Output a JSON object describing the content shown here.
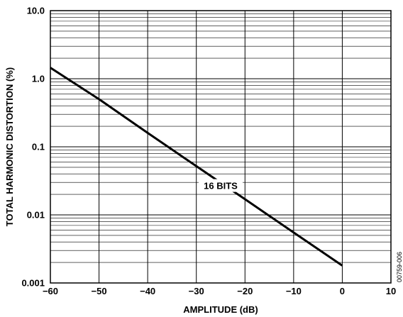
{
  "chart_data": {
    "type": "line",
    "title": "",
    "xlabel": "AMPLITUDE (dB)",
    "ylabel": "TOTAL HARMONIC DISTORTION (%)",
    "x_scale": "linear",
    "y_scale": "log",
    "xlim": [
      -60,
      10
    ],
    "ylim": [
      0.001,
      10.0
    ],
    "x_ticks": [
      -60,
      -50,
      -40,
      -30,
      -20,
      -10,
      0,
      10
    ],
    "x_tick_labels": [
      "−60",
      "−50",
      "−40",
      "−30",
      "−20",
      "−10",
      "0",
      "10"
    ],
    "y_ticks": [
      0.001,
      0.01,
      0.1,
      1.0,
      10.0
    ],
    "y_tick_labels": [
      "0.001",
      "0.01",
      "0.1",
      "1.0",
      "10.0"
    ],
    "grid": true,
    "series": [
      {
        "name": "16 BITS",
        "x": [
          -60,
          -50,
          -40,
          -30,
          -20,
          -10,
          0
        ],
        "y": [
          1.45,
          0.5,
          0.16,
          0.052,
          0.017,
          0.0055,
          0.0018
        ]
      }
    ],
    "annotations": [
      {
        "text": "16 BITS",
        "x": -25,
        "y": 0.027
      }
    ]
  },
  "figure_id": "00759-006",
  "colors": {
    "line": "#000000",
    "grid": "#000000",
    "background": "#ffffff"
  }
}
